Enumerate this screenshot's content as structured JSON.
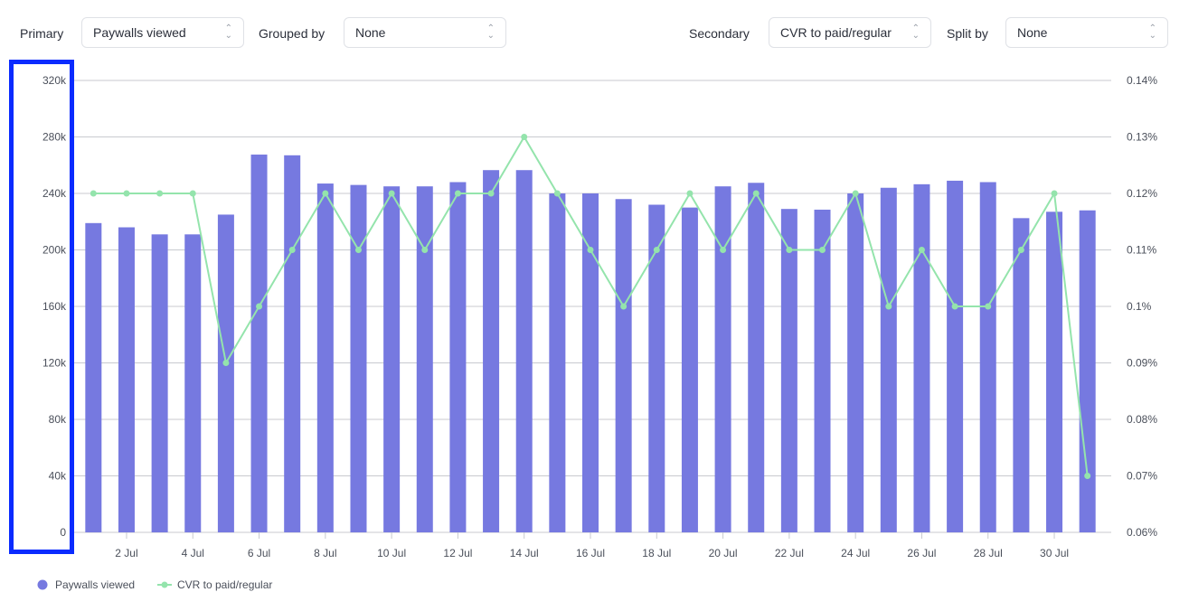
{
  "controls": {
    "primary_label": "Primary",
    "primary_value": "Paywalls viewed",
    "grouped_label": "Grouped by",
    "grouped_value": "None",
    "secondary_label": "Secondary",
    "secondary_value": "CVR to paid/regular",
    "split_label": "Split by",
    "split_value": "None"
  },
  "colors": {
    "bar": "#7679e0",
    "line": "#94e4ac",
    "highlight": "#0a2bff"
  },
  "chart_data": {
    "type": "bar",
    "categories": [
      "1 Jul",
      "2 Jul",
      "3 Jul",
      "4 Jul",
      "5 Jul",
      "6 Jul",
      "7 Jul",
      "8 Jul",
      "9 Jul",
      "10 Jul",
      "11 Jul",
      "12 Jul",
      "13 Jul",
      "14 Jul",
      "15 Jul",
      "16 Jul",
      "17 Jul",
      "18 Jul",
      "19 Jul",
      "20 Jul",
      "21 Jul",
      "22 Jul",
      "23 Jul",
      "24 Jul",
      "25 Jul",
      "26 Jul",
      "27 Jul",
      "28 Jul",
      "29 Jul",
      "30 Jul",
      "31 Jul"
    ],
    "x_tick_labels": [
      "2 Jul",
      "4 Jul",
      "6 Jul",
      "8 Jul",
      "10 Jul",
      "12 Jul",
      "14 Jul",
      "16 Jul",
      "18 Jul",
      "20 Jul",
      "22 Jul",
      "24 Jul",
      "26 Jul",
      "28 Jul",
      "30 Jul"
    ],
    "series": [
      {
        "name": "Paywalls viewed",
        "type": "bar",
        "axis": "left",
        "values": [
          219000,
          216000,
          211000,
          211000,
          225000,
          267500,
          267000,
          247000,
          246000,
          245000,
          245000,
          248000,
          256500,
          256500,
          240000,
          240000,
          236000,
          232000,
          230000,
          245000,
          247500,
          229000,
          228500,
          240000,
          244000,
          246500,
          249000,
          248000,
          222500,
          227000,
          228000
        ]
      },
      {
        "name": "CVR to paid/regular",
        "type": "line",
        "axis": "right",
        "values": [
          0.12,
          0.12,
          0.12,
          0.12,
          0.09,
          0.1,
          0.11,
          0.12,
          0.11,
          0.12,
          0.11,
          0.12,
          0.12,
          0.13,
          0.12,
          0.11,
          0.1,
          0.11,
          0.12,
          0.11,
          0.12,
          0.11,
          0.11,
          0.12,
          0.1,
          0.11,
          0.1,
          0.1,
          0.11,
          0.12,
          0.07
        ]
      }
    ],
    "y_left": {
      "ticks": [
        "0",
        "40k",
        "80k",
        "120k",
        "160k",
        "200k",
        "240k",
        "280k",
        "320k"
      ],
      "ylim": [
        0,
        320000
      ]
    },
    "y_right": {
      "ticks": [
        "0.06%",
        "0.07%",
        "0.08%",
        "0.09%",
        "0.1%",
        "0.11%",
        "0.12%",
        "0.13%",
        "0.14%"
      ],
      "ylim": [
        0.06,
        0.14
      ]
    },
    "grid": true,
    "legend_position": "bottom-left",
    "legend": [
      "Paywalls viewed",
      "CVR to paid/regular"
    ]
  }
}
